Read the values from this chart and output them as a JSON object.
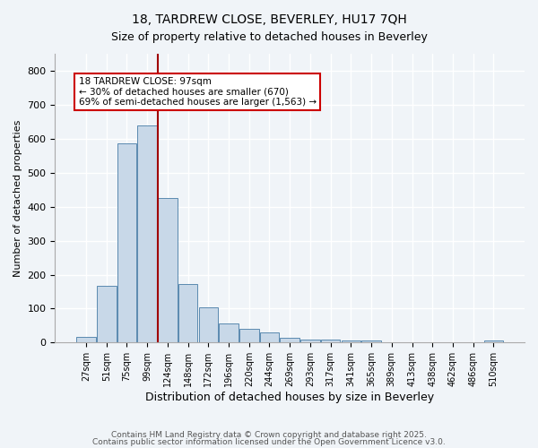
{
  "title1": "18, TARDREW CLOSE, BEVERLEY, HU17 7QH",
  "title2": "Size of property relative to detached houses in Beverley",
  "xlabel": "Distribution of detached houses by size in Beverley",
  "ylabel": "Number of detached properties",
  "categories": [
    "27sqm",
    "51sqm",
    "75sqm",
    "99sqm",
    "124sqm",
    "148sqm",
    "172sqm",
    "196sqm",
    "220sqm",
    "244sqm",
    "269sqm",
    "293sqm",
    "317sqm",
    "341sqm",
    "365sqm",
    "389sqm",
    "413sqm",
    "438sqm",
    "462sqm",
    "486sqm",
    "510sqm"
  ],
  "values": [
    18,
    168,
    585,
    638,
    425,
    172,
    104,
    56,
    40,
    30,
    14,
    9,
    8,
    6,
    5,
    2,
    1,
    0,
    0,
    0,
    5
  ],
  "bar_color": "#c8d8e8",
  "bar_edge_color": "#5a8ab0",
  "vline_x": 3.5,
  "vline_color": "#a00000",
  "annotation_text": "18 TARDREW CLOSE: 97sqm\n← 30% of detached houses are smaller (670)\n69% of semi-detached houses are larger (1,563) →",
  "annotation_box_color": "#ffffff",
  "annotation_box_edge_color": "#cc0000",
  "ylim": [
    0,
    850
  ],
  "yticks": [
    0,
    100,
    200,
    300,
    400,
    500,
    600,
    700,
    800
  ],
  "footer1": "Contains HM Land Registry data © Crown copyright and database right 2025.",
  "footer2": "Contains public sector information licensed under the Open Government Licence v3.0.",
  "bg_color": "#f0f4f8",
  "plot_bg_color": "#f0f4f8"
}
